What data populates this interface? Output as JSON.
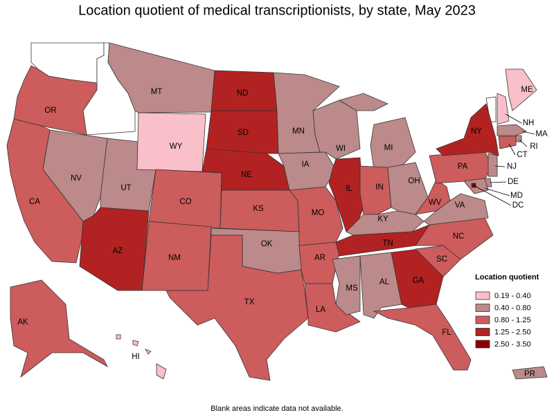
{
  "title": "Location quotient of medical transcriptionists, by state, May 2023",
  "legend": {
    "title": "Location quotient",
    "items": [
      {
        "label": "0.19 - 0.40",
        "color": "#f9c0c9"
      },
      {
        "label": "0.40 - 0.80",
        "color": "#bc8a8a"
      },
      {
        "label": "0.80 - 1.25",
        "color": "#cd5c5c"
      },
      {
        "label": "1.25 - 2.50",
        "color": "#b22222"
      },
      {
        "label": "2.50 - 3.50",
        "color": "#8b0000"
      }
    ]
  },
  "states": [
    {
      "label": "OR",
      "color": "#cd5c5c"
    },
    {
      "label": "CA",
      "color": "#cd5c5c"
    },
    {
      "label": "NV",
      "color": "#bc8a8a"
    },
    {
      "label": "UT",
      "color": "#bc8a8a"
    },
    {
      "label": "AZ",
      "color": "#b22222"
    },
    {
      "label": "MT",
      "color": "#bc8a8a"
    },
    {
      "label": "WY",
      "color": "#f9c0c9"
    },
    {
      "label": "CO",
      "color": "#cd5c5c"
    },
    {
      "label": "NM",
      "color": "#cd5c5c"
    },
    {
      "label": "ND",
      "color": "#b22222"
    },
    {
      "label": "SD",
      "color": "#b22222"
    },
    {
      "label": "NE",
      "color": "#b22222"
    },
    {
      "label": "KS",
      "color": "#cd5c5c"
    },
    {
      "label": "OK",
      "color": "#bc8a8a"
    },
    {
      "label": "TX",
      "color": "#cd5c5c"
    },
    {
      "label": "MN",
      "color": "#bc8a8a"
    },
    {
      "label": "IA",
      "color": "#bc8a8a"
    },
    {
      "label": "MO",
      "color": "#cd5c5c"
    },
    {
      "label": "AR",
      "color": "#cd5c5c"
    },
    {
      "label": "LA",
      "color": "#cd5c5c"
    },
    {
      "label": "WI",
      "color": "#bc8a8a"
    },
    {
      "label": "IL",
      "color": "#b22222"
    },
    {
      "label": "MI",
      "color": "#bc8a8a"
    },
    {
      "label": "IN",
      "color": "#cd5c5c"
    },
    {
      "label": "OH",
      "color": "#bc8a8a"
    },
    {
      "label": "KY",
      "color": "#bc8a8a"
    },
    {
      "label": "TN",
      "color": "#b22222"
    },
    {
      "label": "MS",
      "color": "#bc8a8a"
    },
    {
      "label": "AL",
      "color": "#bc8a8a"
    },
    {
      "label": "GA",
      "color": "#b22222"
    },
    {
      "label": "FL",
      "color": "#cd5c5c"
    },
    {
      "label": "SC",
      "color": "#cd5c5c"
    },
    {
      "label": "NC",
      "color": "#cd5c5c"
    },
    {
      "label": "VA",
      "color": "#bc8a8a"
    },
    {
      "label": "WV",
      "color": "#cd5c5c"
    },
    {
      "label": "PA",
      "color": "#cd5c5c"
    },
    {
      "label": "NY",
      "color": "#b22222"
    },
    {
      "label": "NH",
      "color": "#f9c0c9"
    },
    {
      "label": "ME",
      "color": "#f9c0c9"
    },
    {
      "label": "MA",
      "color": "#bc8a8a"
    },
    {
      "label": "RI",
      "color": "#bc8a8a"
    },
    {
      "label": "CT",
      "color": "#cd5c5c"
    },
    {
      "label": "NJ",
      "color": "#bc8a8a"
    },
    {
      "label": "DE",
      "color": "#bc8a8a"
    },
    {
      "label": "MD",
      "color": "#bc8a8a"
    },
    {
      "label": "DC",
      "color": "#8b0000"
    },
    {
      "label": "AK",
      "color": "#cd5c5c"
    },
    {
      "label": "HI",
      "color": "#f9c0c9"
    },
    {
      "label": "PR",
      "color": "#bc8a8a"
    }
  ],
  "note": "Blank areas indicate data not available."
}
